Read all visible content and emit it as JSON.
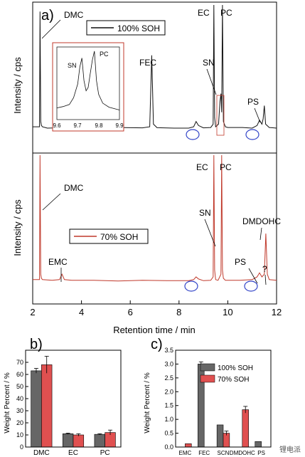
{
  "chart_data": [
    {
      "type": "line",
      "panel_label": "a)",
      "legend": [
        "100% SOH"
      ],
      "ylabel": "Intensity / cps",
      "xlim": [
        2,
        12
      ],
      "series": [
        {
          "name": "100% SOH",
          "color": "#111111",
          "x": [
            2.0,
            2.28,
            2.3,
            2.33,
            2.36,
            2.4,
            2.6,
            3.5,
            4.5,
            5.5,
            6.5,
            6.8,
            6.88,
            6.95,
            7.1,
            7.8,
            8.4,
            8.6,
            8.7,
            8.8,
            9.0,
            9.3,
            9.4,
            9.43,
            9.46,
            9.5,
            9.62,
            9.68,
            9.72,
            9.75,
            9.78,
            9.82,
            9.9,
            10.0,
            10.6,
            11.0,
            11.2,
            11.3,
            11.4,
            11.45,
            11.5,
            11.55,
            11.7,
            12.0
          ],
          "y": [
            0.08,
            0.08,
            0.95,
            0.12,
            0.09,
            0.08,
            0.07,
            0.075,
            0.07,
            0.075,
            0.072,
            0.08,
            0.62,
            0.1,
            0.073,
            0.07,
            0.07,
            0.08,
            0.12,
            0.09,
            0.072,
            0.075,
            0.1,
            1.0,
            0.15,
            0.08,
            0.1,
            0.27,
            0.33,
            0.19,
            1.0,
            0.12,
            0.08,
            0.075,
            0.075,
            0.07,
            0.09,
            0.13,
            0.1,
            0.14,
            0.24,
            0.1,
            0.075,
            0.07
          ]
        }
      ],
      "annotations": [
        "DMC",
        "FEC",
        "EC",
        "PC",
        "SN",
        "PS"
      ],
      "inset": {
        "xlim": [
          9.6,
          9.9
        ],
        "ticks": [
          "9.6",
          "9.7",
          "9.8",
          "9.9"
        ],
        "labels": [
          "SN",
          "PC"
        ],
        "x": [
          9.6,
          9.63,
          9.66,
          9.68,
          9.7,
          9.71,
          9.72,
          9.73,
          9.74,
          9.75,
          9.76,
          9.77,
          9.78,
          9.79,
          9.8,
          9.82,
          9.85,
          9.9
        ],
        "y": [
          0.15,
          0.17,
          0.2,
          0.3,
          0.5,
          0.75,
          0.88,
          0.55,
          0.4,
          0.45,
          0.65,
          0.85,
          0.98,
          0.55,
          0.35,
          0.22,
          0.16,
          0.12
        ]
      }
    },
    {
      "type": "line",
      "legend": [
        "70% SOH"
      ],
      "ylabel": "Intensity / cps",
      "xlabel": "Retention time / min",
      "xlim": [
        2,
        12
      ],
      "xticks": [
        "2",
        "4",
        "6",
        "8",
        "10",
        "12"
      ],
      "series": [
        {
          "name": "70% SOH",
          "color": "#c0392b",
          "x": [
            2.0,
            2.28,
            2.3,
            2.33,
            2.36,
            2.4,
            2.8,
            3.1,
            3.2,
            3.3,
            3.6,
            4.5,
            5.5,
            6.5,
            7.5,
            8.4,
            8.6,
            8.7,
            8.8,
            9.0,
            9.3,
            9.4,
            9.43,
            9.46,
            9.5,
            9.6,
            9.72,
            9.75,
            9.78,
            9.82,
            9.9,
            10.5,
            11.0,
            11.2,
            11.3,
            11.4,
            11.5,
            11.56,
            11.62,
            11.7,
            12.0
          ],
          "y": [
            0.08,
            0.08,
            1.0,
            0.12,
            0.09,
            0.08,
            0.075,
            0.08,
            0.12,
            0.08,
            0.075,
            0.075,
            0.07,
            0.075,
            0.072,
            0.072,
            0.08,
            0.1,
            0.085,
            0.072,
            0.075,
            0.1,
            1.0,
            0.15,
            0.08,
            0.075,
            0.12,
            1.0,
            0.15,
            0.09,
            0.075,
            0.075,
            0.08,
            0.1,
            0.13,
            0.1,
            0.12,
            0.42,
            0.12,
            0.08,
            0.075
          ]
        }
      ],
      "annotations": [
        "DMC",
        "EC",
        "PC",
        "SN",
        "DMDOHC",
        "EMC",
        "PS",
        "?"
      ]
    },
    {
      "type": "bar",
      "panel_label": "b)",
      "ylabel": "Weight Percent / %",
      "ylim": [
        0,
        80
      ],
      "yticks": [
        "0",
        "10",
        "20",
        "30",
        "40",
        "50",
        "60",
        "70"
      ],
      "categories": [
        "DMC",
        "EC",
        "PC"
      ],
      "series": [
        {
          "name": "100% SOH",
          "color": "#666666",
          "values": [
            63,
            11,
            10.5
          ],
          "errors": [
            2,
            0.5,
            0.5
          ]
        },
        {
          "name": "70% SOH",
          "color": "#e05050",
          "values": [
            68,
            10,
            12
          ],
          "errors": [
            7,
            1,
            2
          ]
        }
      ]
    },
    {
      "type": "bar",
      "panel_label": "c)",
      "ylabel": "Weight Percent / %",
      "ylim": [
        0,
        3.5
      ],
      "yticks": [
        "0.0",
        "0.5",
        "1.0",
        "1.5",
        "2.0",
        "2.5",
        "3.0",
        "3.5"
      ],
      "categories": [
        "EMC",
        "FEC",
        "SCN",
        "DMDOHC",
        "PS"
      ],
      "legend": [
        "100% SOH",
        "70% SOH"
      ],
      "series": [
        {
          "name": "100% SOH",
          "color": "#666666",
          "values": [
            0,
            3.0,
            0.8,
            0,
            0.2
          ],
          "errors": [
            0,
            0.08,
            0,
            0,
            0
          ]
        },
        {
          "name": "70% SOH",
          "color": "#e05050",
          "values": [
            0.12,
            0,
            0.5,
            1.35,
            0
          ],
          "errors": [
            0,
            0,
            0.08,
            0.12,
            0
          ]
        }
      ]
    }
  ],
  "watermark": "锂电派"
}
